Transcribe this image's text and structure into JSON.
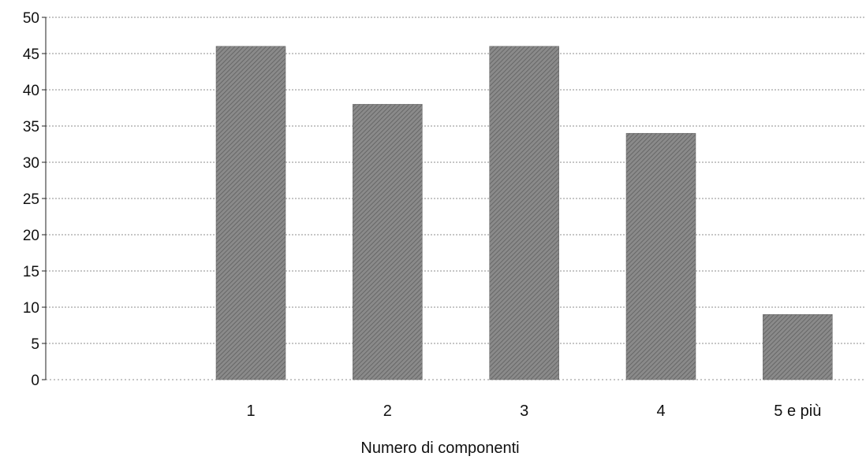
{
  "chart_data": {
    "type": "bar",
    "title": "",
    "xlabel": "Numero di componenti",
    "ylabel": "",
    "categories": [
      "",
      "1",
      "2",
      "3",
      "4",
      "5 e più"
    ],
    "values": [
      0,
      46,
      38,
      46,
      34,
      9
    ],
    "ylim": [
      0,
      50
    ],
    "yticks": [
      0,
      5,
      10,
      15,
      20,
      25,
      30,
      35,
      40,
      45,
      50
    ],
    "grid": true,
    "legend": "none",
    "colors": {
      "bar": "#8a8a8a",
      "bar_hatch": "#5e5e5e",
      "grid": "#8c8c8c",
      "axis": "#222222"
    }
  }
}
